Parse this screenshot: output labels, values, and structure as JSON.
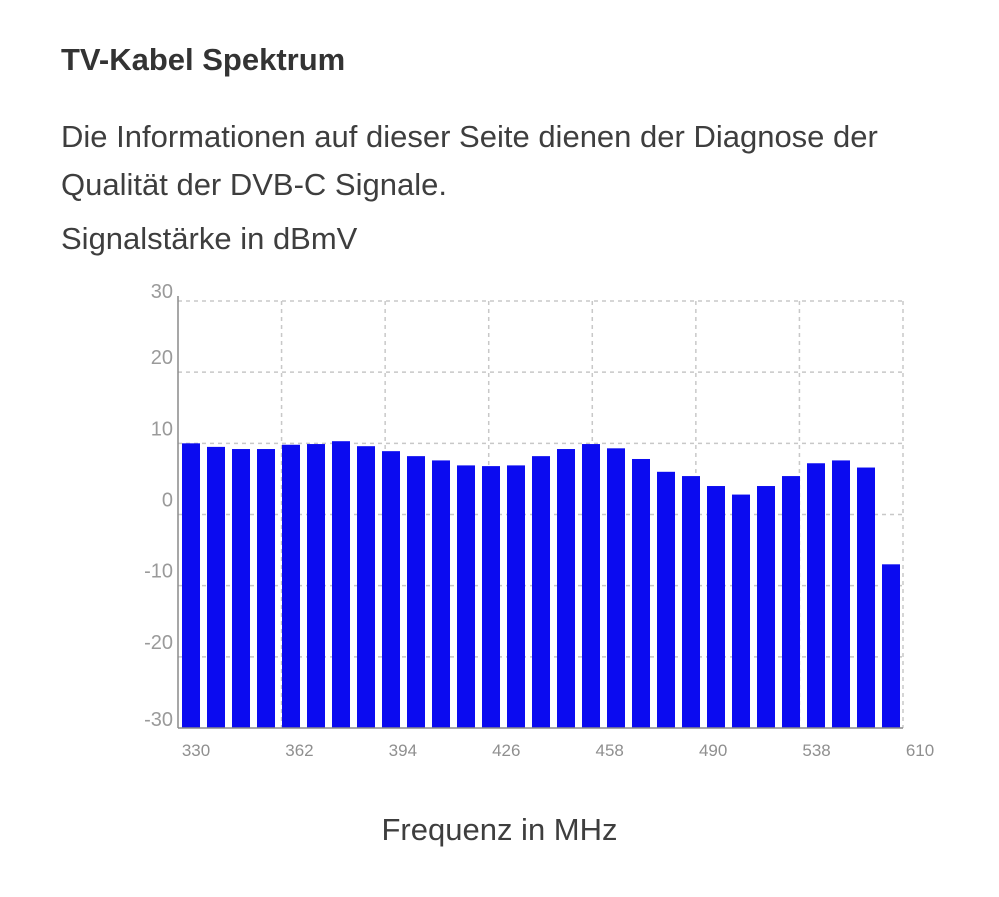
{
  "page": {
    "title": "TV-Kabel Spektrum",
    "description": "Die Informationen auf dieser Seite dienen der Diagnose der Qualität der DVB-C Signale."
  },
  "chart_data": {
    "type": "bar",
    "title": "Signalstärke in dBmV",
    "xlabel": "Frequenz in MHz",
    "ylabel": "",
    "ylim": [
      -30,
      30
    ],
    "y_ticks": [
      "30",
      "20",
      "10",
      "0",
      "-10",
      "-20",
      "-30"
    ],
    "x_tick_labels": [
      "330",
      "362",
      "394",
      "426",
      "458",
      "490",
      "538",
      "610"
    ],
    "grid": true,
    "bar_color": "#0b0bf0",
    "values": [
      10.0,
      9.5,
      9.2,
      9.2,
      9.8,
      9.9,
      10.3,
      9.6,
      8.9,
      8.2,
      7.6,
      6.9,
      6.8,
      6.9,
      8.2,
      9.2,
      9.9,
      9.3,
      7.8,
      6.0,
      5.4,
      4.0,
      2.8,
      4.0,
      5.4,
      7.2,
      7.6,
      6.6,
      -7.0
    ]
  }
}
